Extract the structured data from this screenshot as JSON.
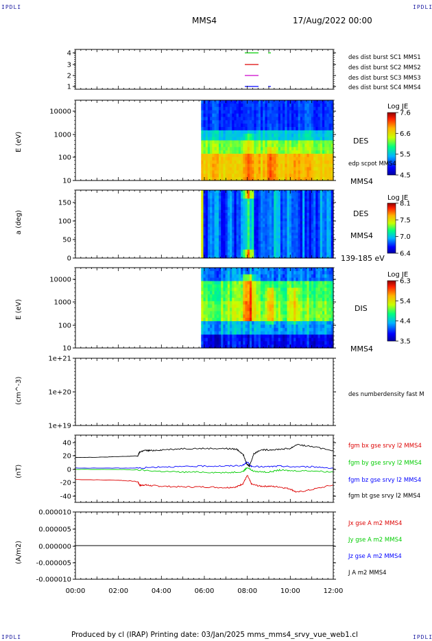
{
  "corners": {
    "tl": "IPDLI",
    "tr": "IPDLI",
    "bl": "IPDLI",
    "br": "IPDLI"
  },
  "header": {
    "spacecraft": "MMS4",
    "date": "17/Aug/2022 00:00"
  },
  "footer": {
    "text": "Produced by cl (IRAP)    Printing date: 03/Jan/2025    mms_mms4_srvy_vue_web1.cl"
  },
  "colors": {
    "mms1": "#0000ff",
    "mms2": "#cc00cc",
    "mms3": "#dd0000",
    "mms4": "#00cc00",
    "black": "#000000"
  },
  "chart_data": [
    {
      "type": "line",
      "panel": "availability",
      "yticks": [
        "4",
        "3",
        "2",
        "1"
      ],
      "legend": [
        {
          "text": "des dist burst SC1 MMS1",
          "color": "#0000ff"
        },
        {
          "text": "des dist burst SC2 MMS2",
          "color": "#cc00cc"
        },
        {
          "text": "des dist burst SC3 MMS3",
          "color": "#dd0000"
        },
        {
          "text": "des dist burst SC4 MMS4",
          "color": "#00cc00"
        }
      ]
    },
    {
      "type": "heatmap",
      "panel": "des-energy",
      "ylabel": "E (eV)",
      "yticks": [
        "10000",
        "1000",
        "100",
        "10"
      ],
      "labels": [
        "DES",
        "edp scpot MMS4",
        "MMS4"
      ],
      "colorbar": {
        "title": "Log JE",
        "ticks": [
          "7.6",
          "6.6",
          "5.5",
          "4.5"
        ]
      }
    },
    {
      "type": "heatmap",
      "panel": "des-pitch",
      "ylabel": "a (deg)",
      "yticks": [
        "150",
        "100",
        "50",
        "0"
      ],
      "labels": [
        "DES",
        "MMS4",
        "139-185 eV"
      ],
      "colorbar": {
        "title": "Log JE",
        "ticks": [
          "8.1",
          "7.5",
          "7.0",
          "6.4"
        ]
      }
    },
    {
      "type": "heatmap",
      "panel": "dis-energy",
      "ylabel": "E (eV)",
      "yticks": [
        "10000",
        "1000",
        "100",
        "10"
      ],
      "labels": [
        "DIS",
        "MMS4"
      ],
      "colorbar": {
        "title": "Log JE",
        "ticks": [
          "6.3",
          "5.4",
          "4.4",
          "3.5"
        ]
      }
    },
    {
      "type": "line",
      "panel": "density",
      "ylabel": "(cm^-3)",
      "yticks": [
        "1e+21",
        "1e+20",
        "1e+19"
      ],
      "labels": [
        "des numberdensity fast M"
      ]
    },
    {
      "type": "line",
      "panel": "fgm",
      "ylabel": "(nT)",
      "yticks": [
        "40",
        "20",
        "0",
        "-20",
        "-40"
      ],
      "ylim": [
        -50,
        50
      ],
      "series": [
        {
          "name": "fgm bx gse srvy l2 MMS4",
          "color": "#dd0000",
          "x": [
            0,
            2,
            2.9,
            3.0,
            3.2,
            3.5,
            4,
            5,
            6,
            7,
            7.5,
            7.8,
            8.0,
            8.2,
            8.6,
            9,
            9.5,
            10,
            10.3,
            11,
            12
          ],
          "y": [
            -16,
            -17,
            -19,
            -25,
            -24,
            -25,
            -26,
            -27,
            -27,
            -28,
            -27,
            -22,
            -10,
            -23,
            -26,
            -26,
            -27,
            -30,
            -35,
            -31,
            -24
          ]
        },
        {
          "name": "fgm by gse srvy l2 MMS4",
          "color": "#00cc00",
          "x": [
            0,
            2,
            3,
            4,
            5,
            6,
            7,
            7.8,
            8.0,
            8.3,
            9,
            9.5,
            10,
            11,
            12
          ],
          "y": [
            -1,
            -1,
            -2,
            -4,
            -5,
            -5,
            -6,
            -4,
            2,
            -4,
            -5,
            -2,
            -3,
            -3,
            -5
          ]
        },
        {
          "name": "fgm bz gse srvy l2 MMS4",
          "color": "#0000ff",
          "x": [
            0,
            2,
            3,
            4,
            5,
            6,
            7,
            7.8,
            8.0,
            8.2,
            9,
            9.5,
            10,
            11,
            12
          ],
          "y": [
            1,
            1,
            1,
            3,
            3,
            4,
            4,
            5,
            10,
            3,
            3,
            4,
            3,
            3,
            1
          ]
        },
        {
          "name": "fgm bt gse srvy l2 MMS4",
          "color": "#000000",
          "x": [
            0,
            1,
            2,
            2.9,
            3.0,
            3.2,
            3.5,
            4,
            5,
            6,
            7,
            7.5,
            7.8,
            8.0,
            8.1,
            8.3,
            8.6,
            9,
            9.5,
            10,
            10.3,
            11,
            12
          ],
          "y": [
            17,
            17,
            18,
            19,
            25,
            27,
            27,
            28,
            30,
            30,
            30,
            29,
            22,
            6,
            4,
            22,
            28,
            28,
            29,
            30,
            36,
            33,
            27
          ]
        }
      ]
    },
    {
      "type": "line",
      "panel": "current",
      "ylabel": "(A/m2)",
      "yticks": [
        "0.000010",
        "0.000005",
        "0.000000",
        "-0.000005",
        "-0.000010"
      ],
      "ylim": [
        -1e-05,
        1e-05
      ],
      "series": [
        {
          "name": "Jx gse A m2 MMS4",
          "color": "#dd0000",
          "x": [
            0,
            12
          ],
          "y": [
            0,
            0
          ]
        },
        {
          "name": "Jy gse A m2 MMS4",
          "color": "#00cc00",
          "x": [
            0,
            12
          ],
          "y": [
            0,
            0
          ]
        },
        {
          "name": "Jz gse A m2 MMS4",
          "color": "#0000ff",
          "x": [
            0,
            12
          ],
          "y": [
            0,
            0
          ]
        },
        {
          "name": "J A m2 MMS4",
          "color": "#000000",
          "x": [
            0,
            12
          ],
          "y": [
            0,
            0
          ]
        }
      ]
    }
  ],
  "xaxis": {
    "ticks": [
      "00:00",
      "02:00",
      "04:00",
      "06:00",
      "08:00",
      "10:00",
      "12:00"
    ]
  }
}
